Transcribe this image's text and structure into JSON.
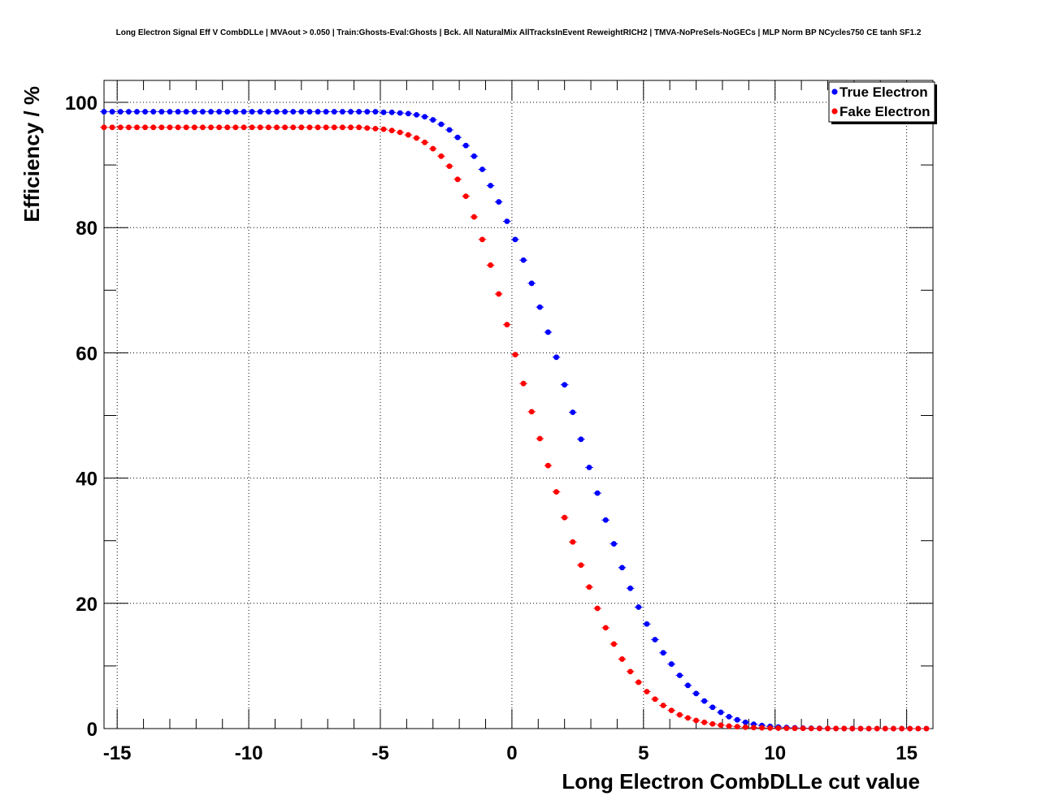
{
  "chart_data": {
    "type": "scatter",
    "title": "Long Electron Signal Eff V CombDLLe | MVAout > 0.050 | Train:Ghosts-Eval:Ghosts | Bck. All NaturalMix AllTracksInEvent ReweightRICH2 | TMVA-NoPreSels-NoGECs | MLP Norm BP NCycles750 CE tanh SF1.2",
    "xlabel": "Long Electron CombDLLe cut value",
    "ylabel": "Efficiency / %",
    "xlim": [
      -15.5,
      16
    ],
    "ylim": [
      0,
      103.5
    ],
    "x_ticks": [
      -15,
      -10,
      -5,
      0,
      5,
      10,
      15
    ],
    "y_ticks": [
      0,
      20,
      40,
      60,
      80,
      100
    ],
    "x_tick_labels": [
      "-15",
      "-10",
      "-5",
      "0",
      "5",
      "10",
      "15"
    ],
    "y_tick_labels": [
      "0",
      "20",
      "40",
      "60",
      "80",
      "100"
    ],
    "grid": true,
    "legend_position": "top-right",
    "x_start": -15.5,
    "x_step": 0.3125,
    "series": [
      {
        "name": "True Electron",
        "color": "#0000ff",
        "y": [
          98.5,
          98.5,
          98.5,
          98.5,
          98.5,
          98.5,
          98.5,
          98.5,
          98.5,
          98.5,
          98.5,
          98.5,
          98.5,
          98.5,
          98.5,
          98.5,
          98.5,
          98.5,
          98.5,
          98.5,
          98.5,
          98.5,
          98.5,
          98.5,
          98.5,
          98.5,
          98.5,
          98.5,
          98.5,
          98.5,
          98.5,
          98.5,
          98.5,
          98.5,
          98.4,
          98.4,
          98.3,
          98.2,
          98.0,
          97.7,
          97.2,
          96.5,
          95.6,
          94.4,
          93.1,
          91.4,
          89.3,
          86.7,
          84.1,
          81.0,
          78.1,
          74.8,
          71.1,
          67.3,
          63.3,
          59.3,
          54.9,
          50.5,
          46.2,
          41.7,
          37.6,
          33.3,
          29.5,
          25.7,
          22.4,
          19.4,
          16.7,
          14.2,
          12.1,
          10.3,
          8.5,
          6.9,
          5.6,
          4.4,
          3.4,
          2.6,
          1.9,
          1.4,
          1.0,
          0.7,
          0.5,
          0.35,
          0.25,
          0.18,
          0.12,
          0.08,
          0.06,
          0.04,
          0.03,
          0.02,
          0.01,
          0.01,
          0.0,
          0.0,
          0.0,
          0.0,
          0.0,
          0.0,
          0.0,
          0.0,
          0.0
        ]
      },
      {
        "name": "Fake Electron",
        "color": "#ff0000",
        "y": [
          96.0,
          96.0,
          96.0,
          96.0,
          96.0,
          96.0,
          96.0,
          96.0,
          96.0,
          96.0,
          96.0,
          96.0,
          96.0,
          96.0,
          96.0,
          96.0,
          96.0,
          96.0,
          96.0,
          96.0,
          96.0,
          96.0,
          96.0,
          96.0,
          96.0,
          96.0,
          96.0,
          96.0,
          96.0,
          96.0,
          96.0,
          96.0,
          95.9,
          95.8,
          95.7,
          95.5,
          95.2,
          94.8,
          94.3,
          93.6,
          92.6,
          91.4,
          89.8,
          87.7,
          85.0,
          81.7,
          78.1,
          74.0,
          69.4,
          64.5,
          59.7,
          55.1,
          50.6,
          46.3,
          42.0,
          37.8,
          33.7,
          29.8,
          26.1,
          22.6,
          19.2,
          16.1,
          13.5,
          11.1,
          9.1,
          7.4,
          5.9,
          4.7,
          3.7,
          2.9,
          2.2,
          1.7,
          1.3,
          1.0,
          0.75,
          0.55,
          0.4,
          0.3,
          0.22,
          0.16,
          0.12,
          0.09,
          0.07,
          0.05,
          0.04,
          0.03,
          0.02,
          0.02,
          0.01,
          0.01,
          0.01,
          0.0,
          0.0,
          0.0,
          0.0,
          0.0,
          0.0,
          0.0,
          0.0,
          0.0,
          0.0
        ]
      }
    ]
  }
}
